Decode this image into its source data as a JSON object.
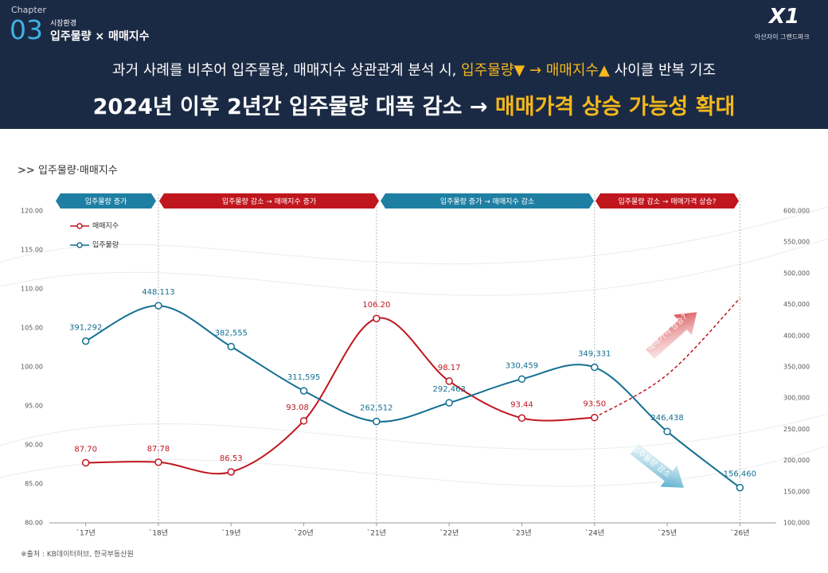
{
  "header": {
    "chapter": "Chapter",
    "number": "03",
    "section": "시장환경",
    "topic": "입주물량 × 매매지수",
    "logo": "X1",
    "brand": "아산자이 그랜드파크",
    "line1_a": "과거 사례를 비추어 입주물량, 매매지수 상관관계 분석 시,",
    "line1_b": "입주물량▼ → 매매지수▲",
    "line1_c": "사이클 반복 기조",
    "line2_a": "2024년 이후 2년간 입주물량 대폭 감소 →",
    "line2_b": "매매가격 상승 가능성 확대"
  },
  "section_title": "입주물량·매매지수",
  "source": "※출처 : KB데이터허브, 한국부동산원",
  "chart_data": {
    "type": "line",
    "categories": [
      "`17년",
      "`18년",
      "`19년",
      "`20년",
      "`21년",
      "`22년",
      "`23년",
      "`24년",
      "`25년",
      "`26년"
    ],
    "series": [
      {
        "name": "매매지수",
        "color": "#c0161e",
        "values": [
          87.7,
          87.78,
          86.53,
          93.08,
          106.2,
          98.17,
          93.44,
          93.5,
          null,
          null
        ],
        "value_labels": [
          "87.70",
          "87.78",
          "86.53",
          "93.08",
          "106.20",
          "98.17",
          "93.44",
          "93.50",
          null,
          null
        ]
      },
      {
        "name": "입주물량",
        "color": "#136f92",
        "axis": "y2",
        "values": [
          391292,
          448113,
          382555,
          311595,
          262512,
          292463,
          330459,
          349331,
          246438,
          156460
        ],
        "value_labels": [
          "391,292",
          "448,113",
          "382,555",
          "311,595",
          "262,512",
          "292,463",
          "330,459",
          "349,331",
          "246,438",
          "156,460"
        ]
      }
    ],
    "projection": {
      "color": "#c0161e",
      "values": [
        null,
        null,
        null,
        null,
        null,
        null,
        null,
        null,
        99.0,
        108.8
      ]
    },
    "phases": [
      "입주물량 증가",
      "입주물량 감소 → 매매지수 증가",
      "입주물량 증가 → 매매지수 감소",
      "입주물량 감소 → 매매가격 상승?"
    ],
    "annotations": [
      "매매가격 상승?",
      "입주물량 감소"
    ],
    "ylim": [
      80,
      120
    ],
    "yticks": [
      {
        "value": 80,
        "label": "80.00"
      },
      {
        "value": 85,
        "label": "85.00"
      },
      {
        "value": 90,
        "label": "90.00"
      },
      {
        "value": 95,
        "label": "95.00"
      },
      {
        "value": 100,
        "label": "100.00"
      },
      {
        "value": 105,
        "label": "105.00"
      },
      {
        "value": 110,
        "label": "110.00"
      },
      {
        "value": 115,
        "label": "115.00"
      },
      {
        "value": 120,
        "label": "120.00"
      }
    ],
    "y2lim": [
      100000,
      600000
    ],
    "y2ticks": [
      {
        "value": 100000,
        "label": "100,000"
      },
      {
        "value": 150000,
        "label": "150,000"
      },
      {
        "value": 200000,
        "label": "200,000"
      },
      {
        "value": 250000,
        "label": "250,000"
      },
      {
        "value": 300000,
        "label": "300,000"
      },
      {
        "value": 350000,
        "label": "350,000"
      },
      {
        "value": 400000,
        "label": "400,000"
      },
      {
        "value": 450000,
        "label": "450,000"
      },
      {
        "value": 500000,
        "label": "500,000"
      },
      {
        "value": 550000,
        "label": "550,000"
      },
      {
        "value": 600000,
        "label": "600,000"
      }
    ]
  }
}
